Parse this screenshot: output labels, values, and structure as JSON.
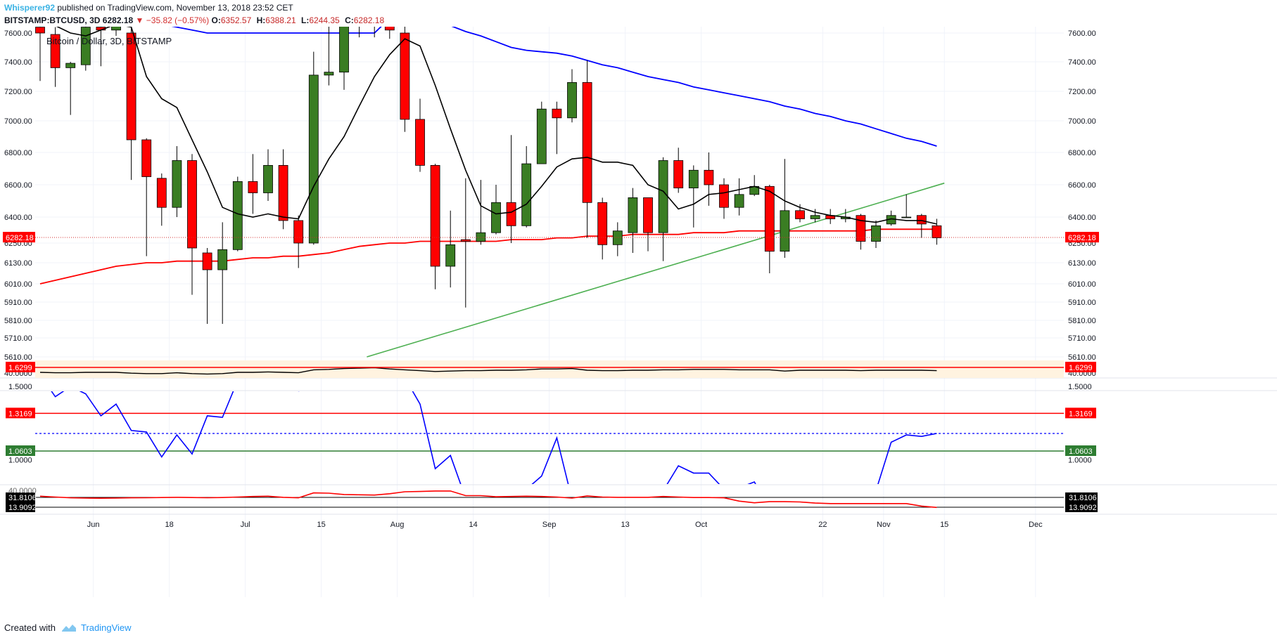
{
  "header": {
    "author": "Whisperer92",
    "published_text": "published on TradingView.com, November 13, 2018 23:52 CET",
    "symbol_line": "BITSTAMP:BTCUSD, 3D",
    "last_price": "6282.18",
    "change_text": "−35.82 (−0.57%)",
    "ohlc": [
      {
        "label": "O:",
        "value": "6352.57"
      },
      {
        "label": "H:",
        "value": "6388.21"
      },
      {
        "label": "L:",
        "value": "6244.35"
      },
      {
        "label": "C:",
        "value": "6282.18"
      }
    ],
    "chart_label": "Bitcoin / Dollar, 3D, BITSTAMP"
  },
  "footer": {
    "created_with": "Created with",
    "brand": "TradingView"
  },
  "colors": {
    "up": "#3a7d23",
    "down": "#ff0000",
    "ema_fast": "#000000",
    "ema_mid": "#ff0000",
    "ema_slow": "#0000ff",
    "trendline": "#4caf50",
    "ratio_line": "#0000ff",
    "lower_line": "#ff0000",
    "level_red": "#ff0000",
    "level_green": "#2e7d32",
    "band_fill": "#fff3e0"
  },
  "chart_data": {
    "type": "candlestick",
    "title": "Bitcoin / Dollar, 3D, BITSTAMP",
    "price_axis": {
      "ticks": [
        "7600.00",
        "7400.00",
        "7200.00",
        "7000.00",
        "6800.00",
        "6600.00",
        "6400.00",
        "6250.00",
        "6130.00",
        "6010.00",
        "5910.00",
        "5810.00",
        "5710.00",
        "5610.00"
      ],
      "current_price_label": "6282.18"
    },
    "x_axis": {
      "labels": [
        {
          "label": "Jun",
          "index": 3.5
        },
        {
          "label": "18",
          "index": 8.5
        },
        {
          "label": "Jul",
          "index": 13.5
        },
        {
          "label": "15",
          "index": 18.5
        },
        {
          "label": "Aug",
          "index": 23.5
        },
        {
          "label": "14",
          "index": 28.5
        },
        {
          "label": "Sep",
          "index": 33.5
        },
        {
          "label": "13",
          "index": 38.5
        },
        {
          "label": "Oct",
          "index": 43.5
        },
        {
          "label": "22",
          "index": 51.5
        },
        {
          "label": "Nov",
          "index": 55.5
        },
        {
          "label": "15",
          "index": 59.5
        },
        {
          "label": "Dec",
          "index": 65.5
        }
      ]
    },
    "candles": [
      {
        "o": 7640,
        "h": 7690,
        "l": 7270,
        "c": 7600
      },
      {
        "o": 7590,
        "h": 7640,
        "l": 7230,
        "c": 7360
      },
      {
        "o": 7360,
        "h": 7400,
        "l": 7040,
        "c": 7390
      },
      {
        "o": 7380,
        "h": 7660,
        "l": 7340,
        "c": 7640
      },
      {
        "o": 7640,
        "h": 7680,
        "l": 7370,
        "c": 7620
      },
      {
        "o": 7620,
        "h": 7690,
        "l": 7580,
        "c": 7660
      },
      {
        "o": 7600,
        "h": 7650,
        "l": 6630,
        "c": 6880
      },
      {
        "o": 6880,
        "h": 6890,
        "l": 6170,
        "c": 6650
      },
      {
        "o": 6640,
        "h": 6670,
        "l": 6350,
        "c": 6460
      },
      {
        "o": 6460,
        "h": 6840,
        "l": 6400,
        "c": 6750
      },
      {
        "o": 6750,
        "h": 6790,
        "l": 5950,
        "c": 6220
      },
      {
        "o": 6190,
        "h": 6220,
        "l": 5790,
        "c": 6090
      },
      {
        "o": 6090,
        "h": 6370,
        "l": 5790,
        "c": 6210
      },
      {
        "o": 6210,
        "h": 6650,
        "l": 6200,
        "c": 6620
      },
      {
        "o": 6620,
        "h": 6790,
        "l": 6420,
        "c": 6550
      },
      {
        "o": 6550,
        "h": 6820,
        "l": 6500,
        "c": 6720
      },
      {
        "o": 6720,
        "h": 6820,
        "l": 6330,
        "c": 6380
      },
      {
        "o": 6380,
        "h": 6410,
        "l": 6100,
        "c": 6250
      },
      {
        "o": 6250,
        "h": 7470,
        "l": 6240,
        "c": 7310
      },
      {
        "o": 7310,
        "h": 7650,
        "l": 7240,
        "c": 7330
      },
      {
        "o": 7330,
        "h": 7680,
        "l": 7210,
        "c": 7660
      },
      {
        "o": 7660,
        "h": 7700,
        "l": 7570,
        "c": 7680
      },
      {
        "o": 7680,
        "h": 7700,
        "l": 7570,
        "c": 7680
      },
      {
        "o": 7680,
        "h": 7700,
        "l": 7560,
        "c": 7620
      },
      {
        "o": 7600,
        "h": 7650,
        "l": 6930,
        "c": 7010
      },
      {
        "o": 7010,
        "h": 7150,
        "l": 6680,
        "c": 6720
      },
      {
        "o": 6720,
        "h": 6730,
        "l": 5980,
        "c": 6110
      },
      {
        "o": 6110,
        "h": 6440,
        "l": 5990,
        "c": 6240
      },
      {
        "o": 6270,
        "h": 6640,
        "l": 5880,
        "c": 6260
      },
      {
        "o": 6260,
        "h": 6630,
        "l": 6240,
        "c": 6310
      },
      {
        "o": 6310,
        "h": 6600,
        "l": 6300,
        "c": 6490
      },
      {
        "o": 6490,
        "h": 6910,
        "l": 6250,
        "c": 6350
      },
      {
        "o": 6350,
        "h": 6840,
        "l": 6340,
        "c": 6730
      },
      {
        "o": 6730,
        "h": 7130,
        "l": 6730,
        "c": 7080
      },
      {
        "o": 7080,
        "h": 7130,
        "l": 6790,
        "c": 7020
      },
      {
        "o": 7020,
        "h": 7350,
        "l": 6990,
        "c": 7260
      },
      {
        "o": 7260,
        "h": 7410,
        "l": 6280,
        "c": 6490
      },
      {
        "o": 6490,
        "h": 6520,
        "l": 6150,
        "c": 6240
      },
      {
        "o": 6240,
        "h": 6370,
        "l": 6170,
        "c": 6320
      },
      {
        "o": 6310,
        "h": 6580,
        "l": 6190,
        "c": 6520
      },
      {
        "o": 6520,
        "h": 6520,
        "l": 6200,
        "c": 6310
      },
      {
        "o": 6310,
        "h": 6770,
        "l": 6140,
        "c": 6750
      },
      {
        "o": 6750,
        "h": 6830,
        "l": 6550,
        "c": 6580
      },
      {
        "o": 6580,
        "h": 6720,
        "l": 6340,
        "c": 6690
      },
      {
        "o": 6690,
        "h": 6800,
        "l": 6470,
        "c": 6600
      },
      {
        "o": 6600,
        "h": 6640,
        "l": 6390,
        "c": 6460
      },
      {
        "o": 6460,
        "h": 6640,
        "l": 6410,
        "c": 6540
      },
      {
        "o": 6540,
        "h": 6660,
        "l": 6530,
        "c": 6590
      },
      {
        "o": 6590,
        "h": 6600,
        "l": 6070,
        "c": 6200
      },
      {
        "o": 6200,
        "h": 6760,
        "l": 6160,
        "c": 6440
      },
      {
        "o": 6440,
        "h": 6480,
        "l": 6370,
        "c": 6390
      },
      {
        "o": 6390,
        "h": 6450,
        "l": 6370,
        "c": 6410
      },
      {
        "o": 6410,
        "h": 6450,
        "l": 6360,
        "c": 6390
      },
      {
        "o": 6390,
        "h": 6450,
        "l": 6370,
        "c": 6400
      },
      {
        "o": 6410,
        "h": 6420,
        "l": 6210,
        "c": 6260
      },
      {
        "o": 6260,
        "h": 6380,
        "l": 6220,
        "c": 6350
      },
      {
        "o": 6360,
        "h": 6440,
        "l": 6350,
        "c": 6410
      },
      {
        "o": 6400,
        "h": 6540,
        "l": 6400,
        "c": 6400
      },
      {
        "o": 6410,
        "h": 6420,
        "l": 6280,
        "c": 6360
      },
      {
        "o": 6350,
        "h": 6390,
        "l": 6240,
        "c": 6280
      }
    ],
    "ema_fast": [
      7680,
      7650,
      7600,
      7580,
      7620,
      7660,
      7640,
      7300,
      7150,
      7090,
      6880,
      6680,
      6460,
      6420,
      6400,
      6420,
      6400,
      6390,
      6590,
      6760,
      6900,
      7100,
      7300,
      7450,
      7560,
      7510,
      7240,
      6950,
      6690,
      6470,
      6420,
      6430,
      6480,
      6590,
      6710,
      6760,
      6770,
      6740,
      6740,
      6720,
      6600,
      6560,
      6450,
      6480,
      6540,
      6550,
      6570,
      6590,
      6560,
      6500,
      6460,
      6430,
      6410,
      6400,
      6380,
      6370,
      6390,
      6380,
      6380,
      6360
    ],
    "ema_mid": [
      6010,
      6030,
      6050,
      6070,
      6090,
      6110,
      6120,
      6130,
      6130,
      6140,
      6140,
      6140,
      6140,
      6150,
      6160,
      6160,
      6170,
      6170,
      6180,
      6190,
      6210,
      6230,
      6240,
      6250,
      6250,
      6260,
      6260,
      6260,
      6260,
      6260,
      6260,
      6270,
      6270,
      6270,
      6280,
      6280,
      6290,
      6290,
      6290,
      6300,
      6300,
      6300,
      6300,
      6310,
      6310,
      6310,
      6320,
      6320,
      6320,
      6320,
      6320,
      6320,
      6320,
      6320,
      6320,
      6330,
      6330,
      6330,
      6330,
      6330
    ],
    "ema_slow": [
      7800,
      7780,
      7760,
      7750,
      7740,
      7720,
      7700,
      7680,
      7660,
      7640,
      7620,
      7600,
      7600,
      7600,
      7600,
      7600,
      7600,
      7600,
      7600,
      7600,
      7600,
      7600,
      7600,
      7700,
      7700,
      7690,
      7680,
      7650,
      7610,
      7580,
      7540,
      7500,
      7480,
      7470,
      7460,
      7440,
      7410,
      7380,
      7360,
      7330,
      7300,
      7280,
      7260,
      7230,
      7210,
      7190,
      7170,
      7150,
      7130,
      7100,
      7080,
      7050,
      7030,
      7000,
      6980,
      6950,
      6920,
      6890,
      6870,
      6840
    ],
    "trendline": {
      "from": {
        "index": 21.5,
        "price": 5610
      },
      "to": {
        "index": 59.5,
        "price": 6610
      }
    },
    "band_panel": {
      "label": "40.0000",
      "values": [
        40.0,
        39.9,
        39.9,
        40.0,
        40.0,
        40.0,
        39.8,
        39.7,
        39.7,
        39.9,
        39.7,
        39.6,
        39.7,
        40.0,
        40.0,
        40.1,
        40.0,
        39.9,
        40.6,
        40.7,
        40.9,
        41.0,
        41.1,
        40.8,
        40.6,
        40.4,
        40.2,
        40.3,
        40.4,
        40.4,
        40.5,
        40.5,
        40.6,
        40.8,
        40.8,
        40.9,
        40.5,
        40.4,
        40.4,
        40.5,
        40.5,
        40.6,
        40.6,
        40.7,
        40.7,
        40.7,
        40.6,
        40.6,
        40.6,
        40.3,
        40.5,
        40.5,
        40.5,
        40.5,
        40.4,
        40.5,
        40.5,
        40.5,
        40.5,
        40.4
      ]
    },
    "ratio_panel": {
      "levels": [
        {
          "label": "1.6299",
          "color": "red"
        },
        {
          "label": "1.3169",
          "color": "red"
        },
        {
          "label": "1.0603",
          "color": "green"
        }
      ],
      "ticks": [
        "1.5000",
        "1.0000"
      ],
      "dotted_level": 1.18,
      "values": [
        1.58,
        1.43,
        1.5,
        1.45,
        1.3,
        1.38,
        1.2,
        1.19,
        1.02,
        1.17,
        1.04,
        1.3,
        1.29,
        1.54,
        1.59,
        1.63,
        1.54,
        1.47,
        1.48,
        1.57,
        1.64,
        1.56,
        1.49,
        1.58,
        1.56,
        1.38,
        0.94,
        1.03,
        0.74,
        0.73,
        0.61,
        0.72,
        0.8,
        0.89,
        1.15,
        0.73,
        0.58,
        0.6,
        0.63,
        0.67,
        0.6,
        0.79,
        0.96,
        0.91,
        0.91,
        0.8,
        0.81,
        0.85,
        0.66,
        0.59,
        0.55,
        0.55,
        0.66,
        0.65,
        0.64,
        0.79,
        1.12,
        1.17,
        1.16,
        1.18
      ]
    },
    "lower_panel": {
      "levels": [
        "31.8106",
        "13.9092"
      ],
      "partial_tick": "40.0000",
      "values": [
        34.0,
        32.5,
        31.0,
        30.5,
        30.3,
        30.5,
        31.0,
        31.2,
        31.5,
        32.0,
        31.5,
        31.2,
        31.5,
        32.5,
        33.5,
        34.0,
        32.0,
        31.0,
        40.0,
        39.5,
        37.0,
        36.5,
        36.0,
        38.5,
        42.0,
        42.5,
        43.5,
        43.5,
        35.0,
        35.0,
        33.0,
        33.5,
        34.0,
        33.5,
        32.5,
        30.5,
        34.5,
        32.5,
        32.0,
        32.0,
        32.0,
        33.5,
        32.5,
        31.5,
        31.5,
        31.0,
        25.0,
        22.0,
        24.0,
        24.0,
        23.5,
        21.5,
        20.5,
        20.5,
        20.5,
        20.5,
        20.5,
        20.5,
        16.0,
        13.5
      ]
    }
  }
}
